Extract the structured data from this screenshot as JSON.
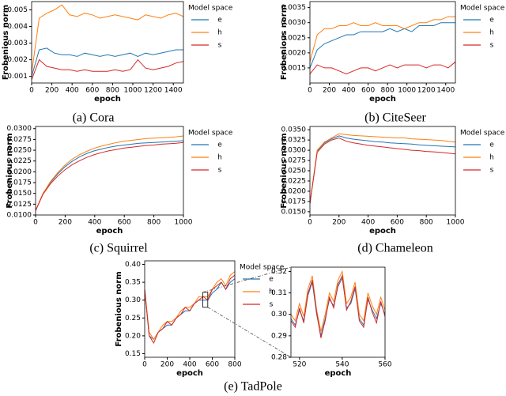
{
  "chart_data": [
    {
      "type": "line",
      "caption": "(a) Cora",
      "xlabel": "epoch",
      "ylabel": "Frobenious norm",
      "legend_title": "Model space",
      "legend": "outside right",
      "x": [
        0,
        75,
        150,
        225,
        300,
        375,
        450,
        525,
        600,
        675,
        750,
        825,
        900,
        975,
        1050,
        1125,
        1200,
        1275,
        1350,
        1425,
        1500
      ],
      "xlim": [
        0,
        1500
      ],
      "xticks": [
        0,
        200,
        400,
        600,
        800,
        1000,
        1200,
        1400
      ],
      "ylim": [
        0.0006,
        0.0055
      ],
      "yticks": [
        0.001,
        0.002,
        0.003,
        0.004,
        0.005
      ],
      "series": [
        {
          "name": "e",
          "color": "#1f77b4",
          "values": [
            0.001,
            0.0026,
            0.0027,
            0.0024,
            0.0023,
            0.0023,
            0.0022,
            0.0024,
            0.0023,
            0.0022,
            0.0023,
            0.0022,
            0.0023,
            0.0024,
            0.0022,
            0.0024,
            0.0023,
            0.0024,
            0.0025,
            0.0026,
            0.0026
          ]
        },
        {
          "name": "h",
          "color": "#ff7f0e",
          "values": [
            0.0012,
            0.0045,
            0.0048,
            0.005,
            0.0053,
            0.0047,
            0.0046,
            0.0048,
            0.0047,
            0.0045,
            0.0046,
            0.0047,
            0.0046,
            0.0045,
            0.0044,
            0.0047,
            0.0046,
            0.0045,
            0.0047,
            0.0048,
            0.0046
          ]
        },
        {
          "name": "s",
          "color": "#d62728",
          "values": [
            0.0008,
            0.002,
            0.0016,
            0.0015,
            0.0014,
            0.0014,
            0.0013,
            0.0014,
            0.0013,
            0.0013,
            0.0013,
            0.0014,
            0.0013,
            0.0014,
            0.002,
            0.0015,
            0.0014,
            0.0015,
            0.0016,
            0.0018,
            0.0019
          ]
        }
      ]
    },
    {
      "type": "line",
      "caption": "(b) CiteSeer",
      "xlabel": "epoch",
      "ylabel": "Frobenious norm",
      "legend_title": "Model space",
      "legend": "outside right",
      "x": [
        0,
        75,
        150,
        225,
        300,
        375,
        450,
        525,
        600,
        675,
        750,
        825,
        900,
        975,
        1050,
        1125,
        1200,
        1275,
        1350,
        1425,
        1500
      ],
      "xlim": [
        0,
        1500
      ],
      "xticks": [
        0,
        200,
        400,
        600,
        800,
        1000,
        1200,
        1400
      ],
      "ylim": [
        0.001,
        0.0037
      ],
      "yticks": [
        0.0015,
        {
          "value": 0.002,
          "label": "0.0020"
        },
        0.0025,
        {
          "value": 0.003,
          "label": "0.0030"
        },
        0.0035
      ],
      "series": [
        {
          "name": "e",
          "color": "#1f77b4",
          "values": [
            0.0015,
            0.0021,
            0.0023,
            0.0024,
            0.0025,
            0.0026,
            0.0026,
            0.0027,
            0.0027,
            0.0027,
            0.0027,
            0.0028,
            0.0027,
            0.0028,
            0.0027,
            0.0029,
            0.0029,
            0.0029,
            0.003,
            0.003,
            0.003
          ]
        },
        {
          "name": "h",
          "color": "#ff7f0e",
          "values": [
            0.0017,
            0.0026,
            0.0028,
            0.0028,
            0.0029,
            0.0029,
            0.003,
            0.0029,
            0.0029,
            0.003,
            0.0029,
            0.0029,
            0.0029,
            0.0028,
            0.0029,
            0.003,
            0.003,
            0.0031,
            0.0031,
            0.0032,
            0.0032
          ]
        },
        {
          "name": "s",
          "color": "#d62728",
          "values": [
            0.0013,
            0.0016,
            0.0015,
            0.0015,
            0.0014,
            0.0013,
            0.0014,
            0.0015,
            0.0015,
            0.0014,
            0.0015,
            0.0016,
            0.0015,
            0.0016,
            0.0016,
            0.0016,
            0.0015,
            0.0016,
            0.0016,
            0.0015,
            0.0017
          ]
        }
      ]
    },
    {
      "type": "line",
      "caption": "(c) Squirrel",
      "xlabel": "epoch",
      "ylabel": "Frobenious norm",
      "legend_title": "Model space",
      "legend": "outside right",
      "x": [
        0,
        50,
        100,
        150,
        200,
        250,
        300,
        350,
        400,
        450,
        500,
        550,
        600,
        650,
        700,
        750,
        800,
        850,
        900,
        950,
        1000
      ],
      "xlim": [
        0,
        1000
      ],
      "xticks": [
        0,
        200,
        400,
        600,
        800,
        1000
      ],
      "ylim": [
        0.01,
        0.0305
      ],
      "yticks": [
        {
          "value": 0.01,
          "label": "0.0100"
        },
        0.0125,
        {
          "value": 0.015,
          "label": "0.0150"
        },
        0.0175,
        {
          "value": 0.02,
          "label": "0.0200"
        },
        0.0225,
        {
          "value": 0.025,
          "label": "0.0250"
        },
        0.0275,
        {
          "value": 0.03,
          "label": "0.0300"
        }
      ],
      "series": [
        {
          "name": "e",
          "color": "#1f77b4",
          "values": [
            0.011,
            0.015,
            0.0175,
            0.0195,
            0.0212,
            0.0225,
            0.0235,
            0.0243,
            0.0249,
            0.0253,
            0.0257,
            0.026,
            0.0262,
            0.0264,
            0.0266,
            0.0267,
            0.0268,
            0.0269,
            0.027,
            0.0271,
            0.0272
          ]
        },
        {
          "name": "h",
          "color": "#ff7f0e",
          "values": [
            0.011,
            0.015,
            0.0177,
            0.0198,
            0.0216,
            0.023,
            0.024,
            0.0248,
            0.0255,
            0.026,
            0.0264,
            0.0268,
            0.0271,
            0.0273,
            0.0275,
            0.0277,
            0.0278,
            0.0279,
            0.028,
            0.0281,
            0.0283
          ]
        },
        {
          "name": "s",
          "color": "#d62728",
          "values": [
            0.011,
            0.0148,
            0.0172,
            0.019,
            0.0205,
            0.0217,
            0.0226,
            0.0234,
            0.024,
            0.0245,
            0.0249,
            0.0252,
            0.0255,
            0.0257,
            0.0259,
            0.0261,
            0.0262,
            0.0264,
            0.0265,
            0.0266,
            0.0268
          ]
        }
      ]
    },
    {
      "type": "line",
      "caption": "(d) Chameleon",
      "xlabel": "epoch",
      "ylabel": "Frobenious norm",
      "legend_title": "Model space",
      "legend": "outside right",
      "x": [
        0,
        50,
        100,
        150,
        200,
        250,
        300,
        350,
        400,
        450,
        500,
        550,
        600,
        650,
        700,
        750,
        800,
        850,
        900,
        950,
        1000
      ],
      "xlim": [
        0,
        1000
      ],
      "xticks": [
        0,
        200,
        400,
        600,
        800,
        1000
      ],
      "ylim": [
        0.0142,
        0.0358
      ],
      "yticks": [
        {
          "value": 0.015,
          "label": "0.0150"
        },
        0.0175,
        {
          "value": 0.02,
          "label": "0.0200"
        },
        0.0225,
        {
          "value": 0.025,
          "label": "0.0250"
        },
        0.0275,
        {
          "value": 0.03,
          "label": "0.0300"
        },
        0.0325,
        {
          "value": 0.035,
          "label": "0.0350"
        }
      ],
      "series": [
        {
          "name": "e",
          "color": "#1f77b4",
          "values": [
            0.017,
            0.0298,
            0.0318,
            0.0328,
            0.0335,
            0.033,
            0.0327,
            0.0325,
            0.0323,
            0.0321,
            0.032,
            0.0318,
            0.0317,
            0.0316,
            0.0315,
            0.0313,
            0.0312,
            0.0311,
            0.031,
            0.0309,
            0.0308
          ]
        },
        {
          "name": "h",
          "color": "#ff7f0e",
          "values": [
            0.017,
            0.03,
            0.032,
            0.033,
            0.034,
            0.0338,
            0.0336,
            0.0335,
            0.0334,
            0.0333,
            0.0332,
            0.0331,
            0.033,
            0.033,
            0.0328,
            0.0327,
            0.0326,
            0.0325,
            0.0324,
            0.0322,
            0.032
          ]
        },
        {
          "name": "s",
          "color": "#d62728",
          "values": [
            0.017,
            0.0295,
            0.0315,
            0.0325,
            0.033,
            0.0322,
            0.0318,
            0.0315,
            0.0312,
            0.031,
            0.0308,
            0.0306,
            0.0304,
            0.0302,
            0.03,
            0.0299,
            0.0297,
            0.0296,
            0.0295,
            0.0293,
            0.0291
          ]
        }
      ]
    },
    {
      "type": "line",
      "caption": "(e) TadPole",
      "xlabel": "epoch",
      "ylabel": "Frobenious norm",
      "legend_title": "Model space",
      "legend": "outside right",
      "x": [
        0,
        40,
        80,
        120,
        160,
        200,
        240,
        280,
        320,
        360,
        400,
        440,
        480,
        520,
        560,
        600,
        640,
        680,
        720,
        760,
        800
      ],
      "xlim": [
        0,
        800
      ],
      "xticks": [
        0,
        200,
        400,
        600,
        800
      ],
      "ylim": [
        0.14,
        0.41
      ],
      "yticks": [
        0.15,
        {
          "value": 0.2,
          "label": "0.20"
        },
        0.25,
        {
          "value": 0.3,
          "label": "0.30"
        },
        0.35,
        {
          "value": 0.4,
          "label": "0.40"
        }
      ],
      "series": [
        {
          "name": "e",
          "color": "#1f77b4",
          "values": [
            0.33,
            0.2,
            0.19,
            0.21,
            0.22,
            0.23,
            0.23,
            0.25,
            0.26,
            0.27,
            0.27,
            0.29,
            0.3,
            0.3,
            0.3,
            0.32,
            0.33,
            0.35,
            0.33,
            0.35,
            0.36
          ]
        },
        {
          "name": "h",
          "color": "#ff7f0e",
          "values": [
            0.33,
            0.21,
            0.19,
            0.21,
            0.23,
            0.24,
            0.24,
            0.25,
            0.27,
            0.28,
            0.28,
            0.29,
            0.31,
            0.31,
            0.31,
            0.33,
            0.35,
            0.36,
            0.34,
            0.37,
            0.38
          ]
        },
        {
          "name": "s",
          "color": "#d62728",
          "values": [
            0.33,
            0.2,
            0.18,
            0.21,
            0.22,
            0.24,
            0.23,
            0.25,
            0.26,
            0.28,
            0.27,
            0.29,
            0.3,
            0.31,
            0.3,
            0.33,
            0.34,
            0.35,
            0.33,
            0.36,
            0.37
          ]
        }
      ]
    },
    {
      "type": "line",
      "xlabel": "epoch",
      "x": [
        516,
        518,
        520,
        522,
        524,
        526,
        528,
        530,
        532,
        534,
        536,
        538,
        540,
        542,
        544,
        546,
        548,
        550,
        552,
        554,
        556,
        558,
        560
      ],
      "xlim": [
        516,
        560
      ],
      "xticks": [
        520,
        540,
        560
      ],
      "ylim": [
        0.28,
        0.322
      ],
      "yticks": [
        0.28,
        0.29,
        {
          "value": 0.3,
          "label": "0.30"
        },
        0.31,
        0.32
      ],
      "series": [
        {
          "name": "e",
          "color": "#1f77b4",
          "values": [
            0.298,
            0.295,
            0.302,
            0.297,
            0.309,
            0.315,
            0.3,
            0.29,
            0.298,
            0.307,
            0.304,
            0.313,
            0.317,
            0.303,
            0.305,
            0.312,
            0.298,
            0.295,
            0.307,
            0.302,
            0.298,
            0.305,
            0.3
          ]
        },
        {
          "name": "h",
          "color": "#ff7f0e",
          "values": [
            0.3,
            0.297,
            0.305,
            0.299,
            0.312,
            0.318,
            0.302,
            0.292,
            0.3,
            0.31,
            0.306,
            0.316,
            0.32,
            0.305,
            0.308,
            0.315,
            0.3,
            0.297,
            0.31,
            0.304,
            0.3,
            0.308,
            0.302
          ]
        },
        {
          "name": "s",
          "color": "#d62728",
          "values": [
            0.297,
            0.294,
            0.303,
            0.296,
            0.31,
            0.316,
            0.301,
            0.289,
            0.297,
            0.308,
            0.303,
            0.314,
            0.318,
            0.302,
            0.306,
            0.313,
            0.297,
            0.294,
            0.308,
            0.301,
            0.296,
            0.306,
            0.299
          ]
        }
      ]
    }
  ]
}
